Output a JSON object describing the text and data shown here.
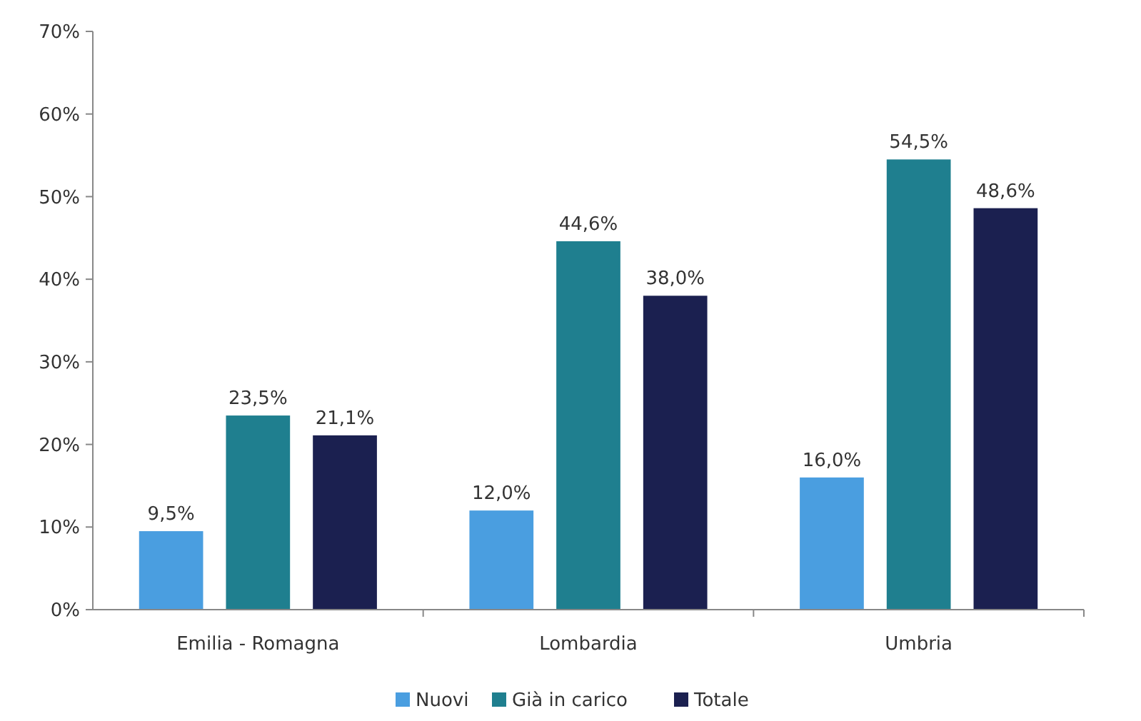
{
  "chart_data": {
    "type": "bar",
    "categories": [
      "Emilia - Romagna",
      "Lombardia",
      "Umbria"
    ],
    "series": [
      {
        "name": "Nuovi",
        "color": "#4a9ee0",
        "values": [
          9.5,
          12.0,
          16.0
        ],
        "value_labels": [
          "9,5%",
          "12,0%",
          "16,0%"
        ]
      },
      {
        "name": "Già in carico",
        "color": "#1f7f8f",
        "values": [
          23.5,
          44.6,
          54.5
        ],
        "value_labels": [
          "23,5%",
          "44,6%",
          "54,5%"
        ]
      },
      {
        "name": "Totale",
        "color": "#1b2050",
        "values": [
          21.1,
          38.0,
          48.6
        ],
        "value_labels": [
          "21,1%",
          "38,0%",
          "48,6%"
        ]
      }
    ],
    "ylim": [
      0,
      70
    ],
    "yticks": [
      {
        "value": 0,
        "label": "0%"
      },
      {
        "value": 10,
        "label": "10%"
      },
      {
        "value": 20,
        "label": "20%"
      },
      {
        "value": 30,
        "label": "30%"
      },
      {
        "value": 40,
        "label": "40%"
      },
      {
        "value": 50,
        "label": "50%"
      },
      {
        "value": 60,
        "label": "60%"
      },
      {
        "value": 70,
        "label": "70%"
      }
    ],
    "grid": false,
    "legend": "bottom"
  }
}
